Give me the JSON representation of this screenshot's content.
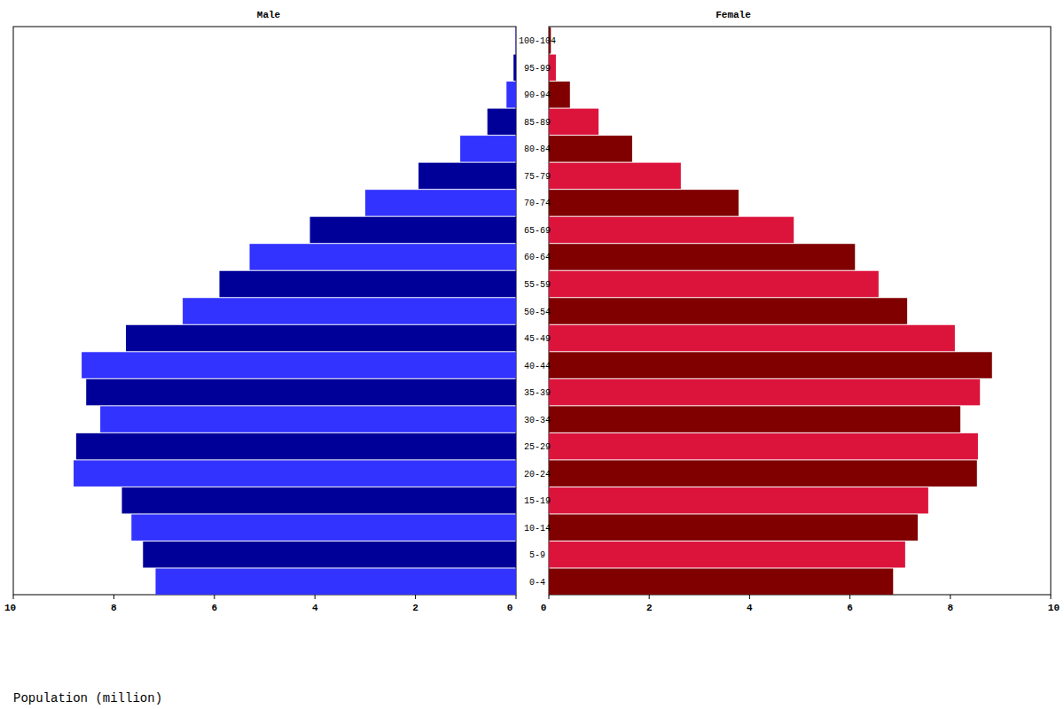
{
  "chart_data": {
    "type": "bar",
    "orientation": "horizontal",
    "xlabel": "Population (million)",
    "categories": [
      "0-4",
      "5-9",
      "10-14",
      "15-19",
      "20-24",
      "25-29",
      "30-34",
      "35-39",
      "40-44",
      "45-49",
      "50-54",
      "55-59",
      "60-64",
      "65-69",
      "70-74",
      "75-79",
      "80-84",
      "85-89",
      "90-94",
      "95-99",
      "100-104"
    ],
    "series": [
      {
        "name": "Male",
        "colors": [
          "#3333ff",
          "#000099",
          "#3333ff",
          "#000099",
          "#3333ff",
          "#000099",
          "#3333ff",
          "#000099",
          "#3333ff",
          "#000099",
          "#3333ff",
          "#000099",
          "#3333ff",
          "#000099",
          "#3333ff",
          "#000099",
          "#3333ff",
          "#000099",
          "#3333ff",
          "#000099",
          "#3333ff"
        ],
        "values": [
          7.17,
          7.42,
          7.65,
          7.84,
          8.8,
          8.75,
          8.27,
          8.55,
          8.64,
          7.76,
          6.63,
          5.9,
          5.3,
          4.1,
          3.0,
          1.94,
          1.11,
          0.57,
          0.19,
          0.05,
          0.01
        ]
      },
      {
        "name": "Female",
        "colors": [
          "#800000",
          "#dc143c",
          "#800000",
          "#dc143c",
          "#800000",
          "#dc143c",
          "#800000",
          "#dc143c",
          "#800000",
          "#dc143c",
          "#800000",
          "#dc143c",
          "#800000",
          "#dc143c",
          "#800000",
          "#dc143c",
          "#800000",
          "#dc143c",
          "#800000",
          "#dc143c",
          "#800000"
        ],
        "values": [
          6.86,
          7.1,
          7.35,
          7.56,
          8.53,
          8.55,
          8.2,
          8.59,
          8.83,
          8.09,
          7.14,
          6.57,
          6.1,
          4.88,
          3.78,
          2.63,
          1.66,
          0.99,
          0.42,
          0.14,
          0.04
        ]
      }
    ],
    "xlim": [
      0,
      10
    ],
    "xticks": [
      0,
      2,
      4,
      6,
      8,
      10
    ]
  }
}
